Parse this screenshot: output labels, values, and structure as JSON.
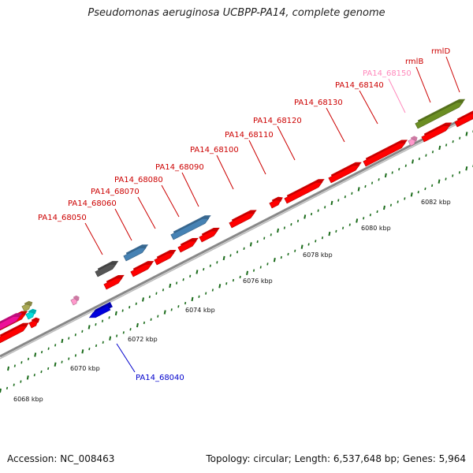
{
  "title": "Pseudomonas aeruginosa UCBPP-PA14, complete genome",
  "footer": {
    "accession": "Accession: NC_008463",
    "summary": "Topology: circular; Length: 6,537,648 bp; Genes: 5,964"
  },
  "colors": {
    "forward_gene": "#ff0000",
    "reverse_gene": "#0000dd",
    "highlight_blue": "#4682b4",
    "gray_gene": "#555555",
    "olive_gene": "#6b8e23",
    "pink_gene": "#ff99cc",
    "magenta_gene": "#ee1199",
    "cyan_gene": "#00dddd",
    "tick_green": "#1a6b1a",
    "backbone": "#888888",
    "label_red": "#cc0000",
    "label_blue": "#0000cc",
    "label_pink": "#ff88bb"
  },
  "ticks": [
    {
      "label": "6068 kbp"
    },
    {
      "label": "6070 kbp"
    },
    {
      "label": "6072 kbp"
    },
    {
      "label": "6074 kbp"
    },
    {
      "label": "6076 kbp"
    },
    {
      "label": "6078 kbp"
    },
    {
      "label": "6080 kbp"
    },
    {
      "label": "6082 kbp"
    }
  ],
  "genes": [
    {
      "name": "PA14_68040",
      "color": "label_blue"
    },
    {
      "name": "PA14_68050",
      "color": "label_red"
    },
    {
      "name": "PA14_68060",
      "color": "label_red"
    },
    {
      "name": "PA14_68070",
      "color": "label_red"
    },
    {
      "name": "PA14_68080",
      "color": "label_red"
    },
    {
      "name": "PA14_68090",
      "color": "label_red"
    },
    {
      "name": "PA14_68100",
      "color": "label_red"
    },
    {
      "name": "PA14_68110",
      "color": "label_red"
    },
    {
      "name": "PA14_68120",
      "color": "label_red"
    },
    {
      "name": "PA14_68130",
      "color": "label_red"
    },
    {
      "name": "PA14_68140",
      "color": "label_red"
    },
    {
      "name": "PA14_68150",
      "color": "label_pink"
    },
    {
      "name": "rmlB",
      "color": "label_red"
    },
    {
      "name": "rmlD",
      "color": "label_red"
    }
  ]
}
